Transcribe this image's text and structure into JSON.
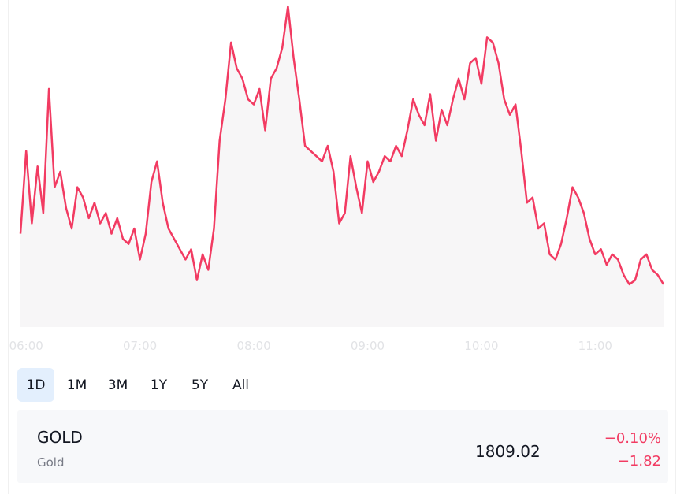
{
  "chart_data": {
    "type": "area",
    "symbol": "GOLD",
    "x_ticks": [
      "06:00",
      "07:00",
      "08:00",
      "09:00",
      "10:00",
      "11:00"
    ],
    "x": [
      "05:57",
      "06:00",
      "06:03",
      "06:06",
      "06:09",
      "06:12",
      "06:15",
      "06:18",
      "06:21",
      "06:24",
      "06:27",
      "06:30",
      "06:33",
      "06:36",
      "06:39",
      "06:42",
      "06:45",
      "06:48",
      "06:51",
      "06:54",
      "06:57",
      "07:00",
      "07:03",
      "07:06",
      "07:09",
      "07:12",
      "07:15",
      "07:18",
      "07:21",
      "07:24",
      "07:27",
      "07:30",
      "07:33",
      "07:36",
      "07:39",
      "07:42",
      "07:45",
      "07:48",
      "07:51",
      "07:54",
      "07:57",
      "08:00",
      "08:03",
      "08:06",
      "08:09",
      "08:12",
      "08:15",
      "08:18",
      "08:21",
      "08:24",
      "08:27",
      "08:30",
      "08:33",
      "08:36",
      "08:39",
      "08:42",
      "08:45",
      "08:48",
      "08:51",
      "08:54",
      "08:57",
      "09:00",
      "09:03",
      "09:06",
      "09:09",
      "09:12",
      "09:15",
      "09:18",
      "09:21",
      "09:24",
      "09:27",
      "09:30",
      "09:33",
      "09:36",
      "09:39",
      "09:42",
      "09:45",
      "09:48",
      "09:51",
      "09:54",
      "09:57",
      "10:00",
      "10:03",
      "10:06",
      "10:09",
      "10:12",
      "10:15",
      "10:18",
      "10:21",
      "10:24",
      "10:27",
      "10:30",
      "10:33",
      "10:36",
      "10:39",
      "10:42",
      "10:45",
      "10:48",
      "10:51",
      "10:54",
      "10:57",
      "11:00",
      "11:03",
      "11:06",
      "11:09",
      "11:12",
      "11:15",
      "11:18",
      "11:21",
      "11:24",
      "11:27",
      "11:30",
      "11:33",
      "11:36"
    ],
    "y": [
      1810.0,
      1811.6,
      1810.2,
      1811.3,
      1810.4,
      1812.8,
      1810.9,
      1811.2,
      1810.5,
      1810.1,
      1810.9,
      1810.7,
      1810.3,
      1810.6,
      1810.2,
      1810.4,
      1810.0,
      1810.3,
      1809.9,
      1809.8,
      1810.1,
      1809.5,
      1810.0,
      1811.0,
      1811.4,
      1810.6,
      1810.1,
      1809.9,
      1809.7,
      1809.5,
      1809.7,
      1809.1,
      1809.6,
      1809.3,
      1810.1,
      1811.8,
      1812.6,
      1813.7,
      1813.2,
      1813.0,
      1812.6,
      1812.5,
      1812.8,
      1812.0,
      1813.0,
      1813.2,
      1813.6,
      1814.4,
      1813.4,
      1812.6,
      1811.7,
      1811.6,
      1811.5,
      1811.4,
      1811.7,
      1811.2,
      1810.2,
      1810.4,
      1811.5,
      1810.9,
      1810.4,
      1811.4,
      1811.0,
      1811.2,
      1811.5,
      1811.4,
      1811.7,
      1811.5,
      1812.0,
      1812.6,
      1812.3,
      1812.1,
      1812.7,
      1811.8,
      1812.4,
      1812.1,
      1812.6,
      1813.0,
      1812.6,
      1813.3,
      1813.4,
      1812.9,
      1813.8,
      1813.7,
      1813.3,
      1812.6,
      1812.3,
      1812.5,
      1811.6,
      1810.6,
      1810.7,
      1810.1,
      1810.2,
      1809.6,
      1809.5,
      1809.8,
      1810.3,
      1810.9,
      1810.7,
      1810.4,
      1809.9,
      1809.6,
      1809.7,
      1809.4,
      1809.6,
      1809.5,
      1809.2,
      1809.02,
      1809.1,
      1809.5,
      1809.6,
      1809.3,
      1809.2,
      1809.02
    ],
    "line_color": "#f23b62",
    "fill_color": "#f7f6f7",
    "grid": false,
    "legend": "none"
  },
  "ranges": [
    "1D",
    "1M",
    "3M",
    "1Y",
    "5Y",
    "All"
  ],
  "active_range": "1D",
  "summary": {
    "symbol": "GOLD",
    "description": "Gold",
    "price": "1809.02",
    "change_pct": "−0.10%",
    "change_abs": "−1.82",
    "change_color": "#f23b62"
  }
}
